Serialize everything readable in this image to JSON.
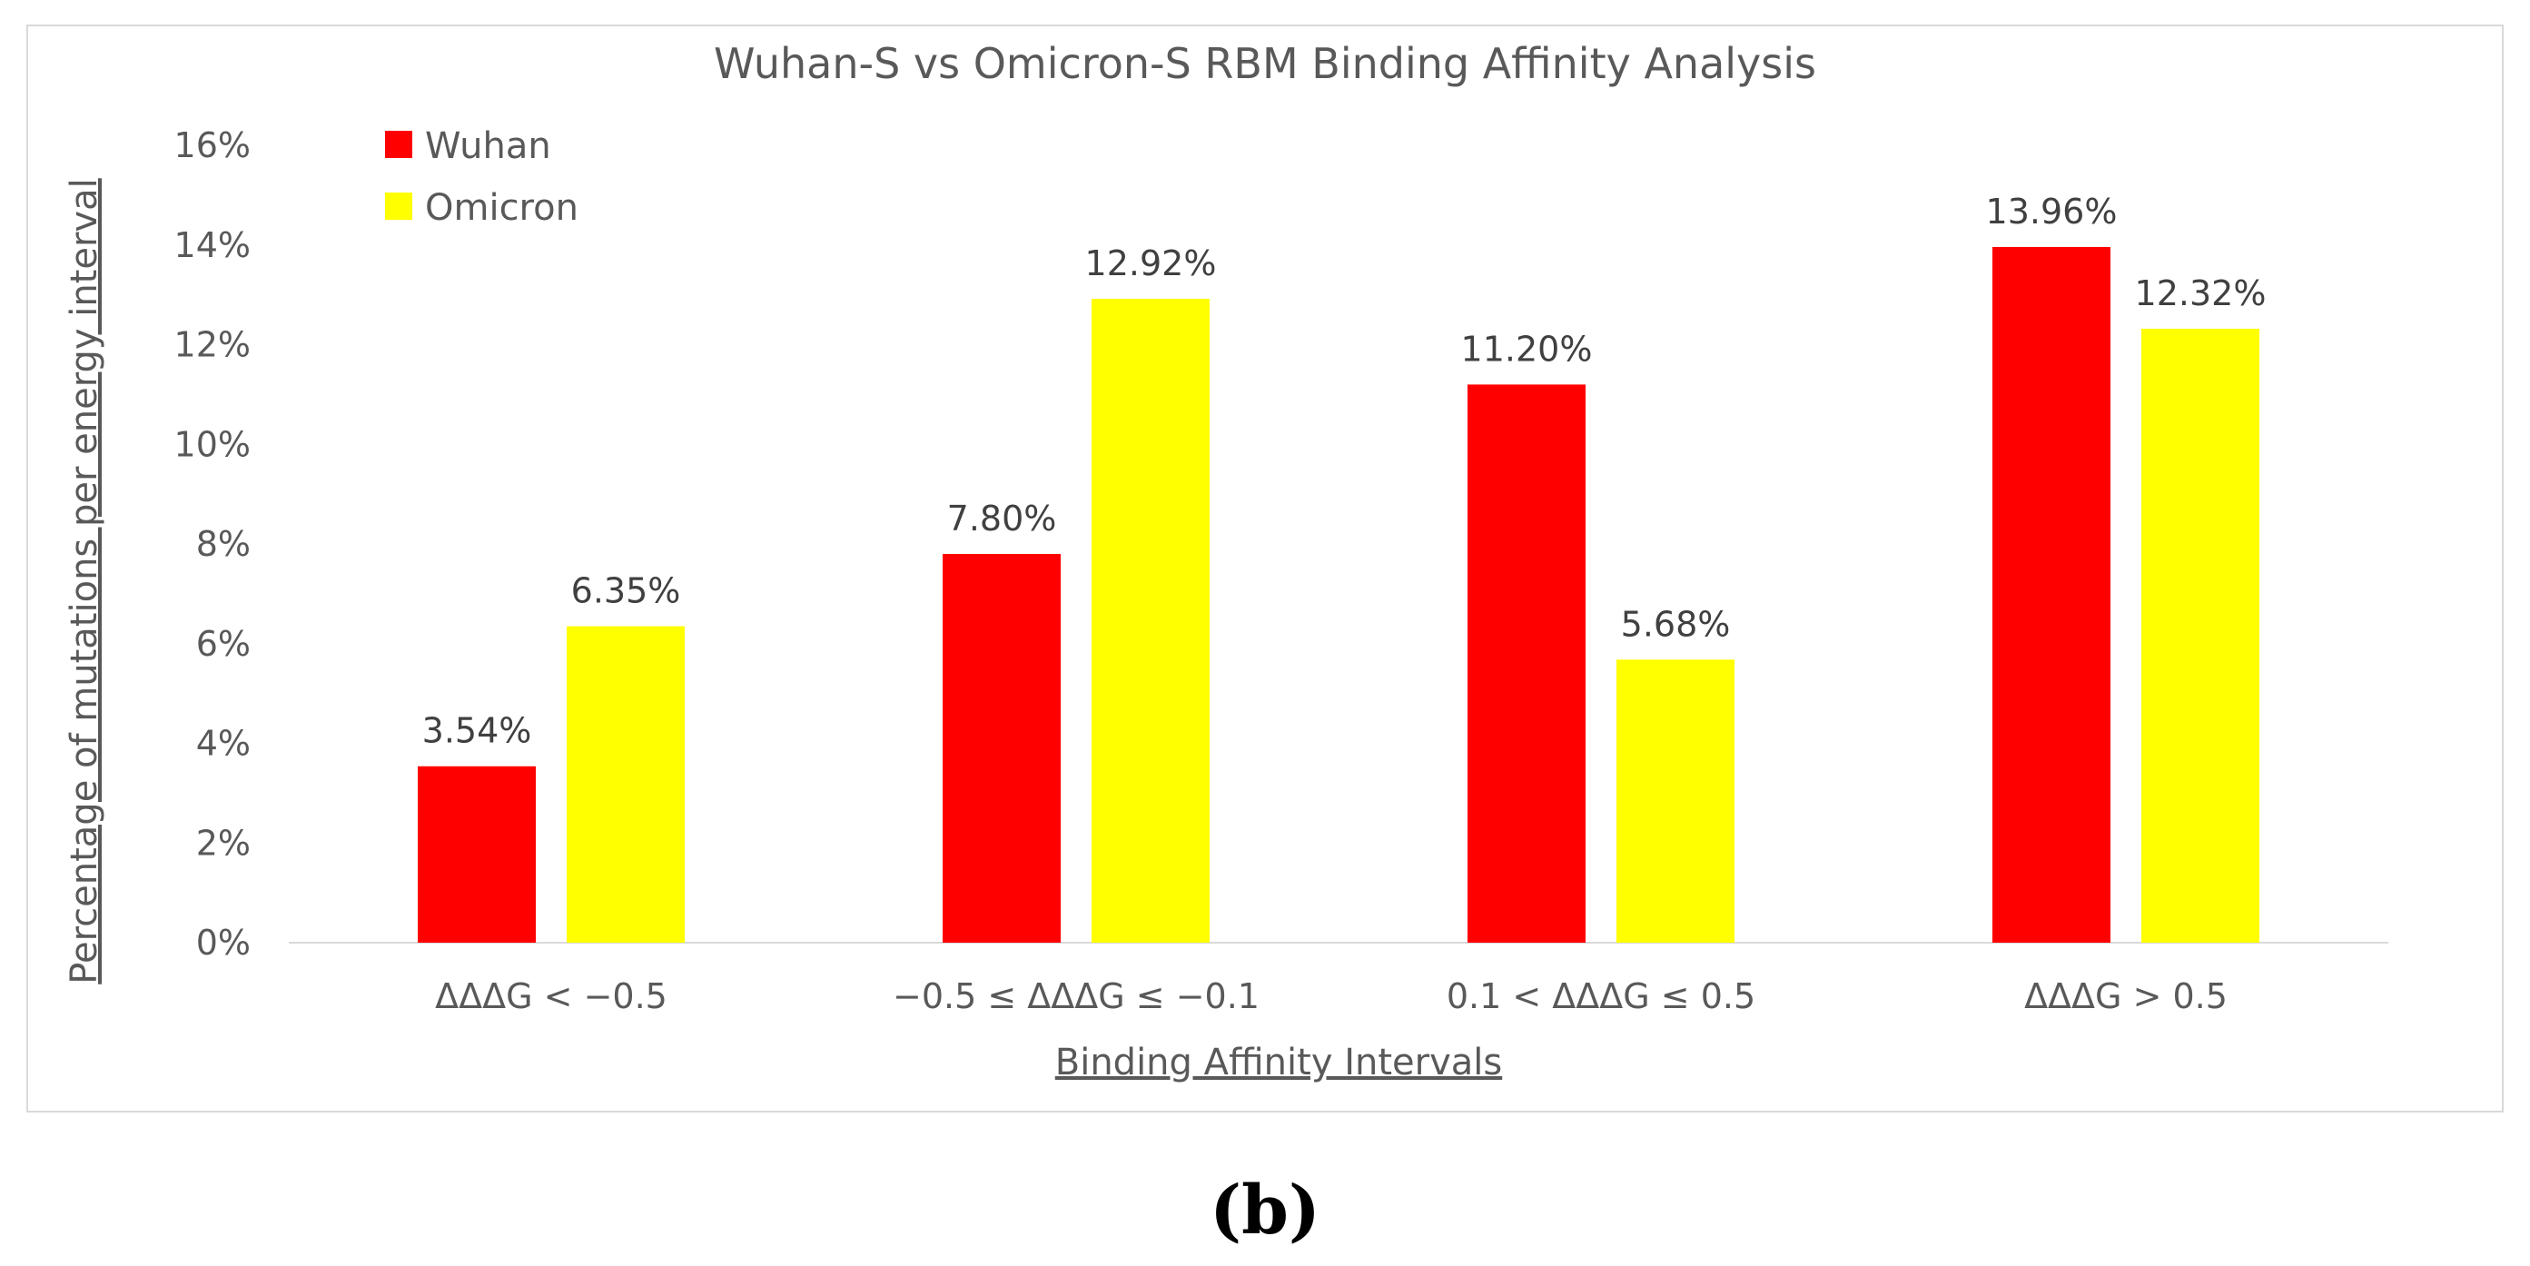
{
  "chart_data": {
    "type": "bar",
    "title": "Wuhan-S vs Omicron-S RBM Binding Affinity Analysis",
    "xlabel": "Binding Affinity Intervals",
    "ylabel": "Percentage of mutations per energy interval",
    "categories": [
      "ΔΔΔG < −0.5",
      "−0.5 ≤ ΔΔΔG ≤ −0.1",
      "0.1 < ΔΔΔG ≤ 0.5",
      "ΔΔΔG > 0.5"
    ],
    "series": [
      {
        "name": "Wuhan",
        "color": "#ff0000",
        "values": [
          3.54,
          7.8,
          11.2,
          13.96
        ],
        "labels": [
          "3.54%",
          "7.80%",
          "11.20%",
          "13.96%"
        ]
      },
      {
        "name": "Omicron",
        "color": "#ffff00",
        "values": [
          6.35,
          12.92,
          5.68,
          12.32
        ],
        "labels": [
          "6.35%",
          "12.92%",
          "5.68%",
          "12.32%"
        ]
      }
    ],
    "ylim": [
      0,
      16
    ],
    "yticks": [
      0,
      2,
      4,
      6,
      8,
      10,
      12,
      14,
      16
    ],
    "ytick_labels": [
      "0%",
      "2%",
      "4%",
      "6%",
      "8%",
      "10%",
      "12%",
      "14%",
      "16%"
    ],
    "grid": false,
    "legend_position": "top-left"
  },
  "panel_label": "(b)"
}
